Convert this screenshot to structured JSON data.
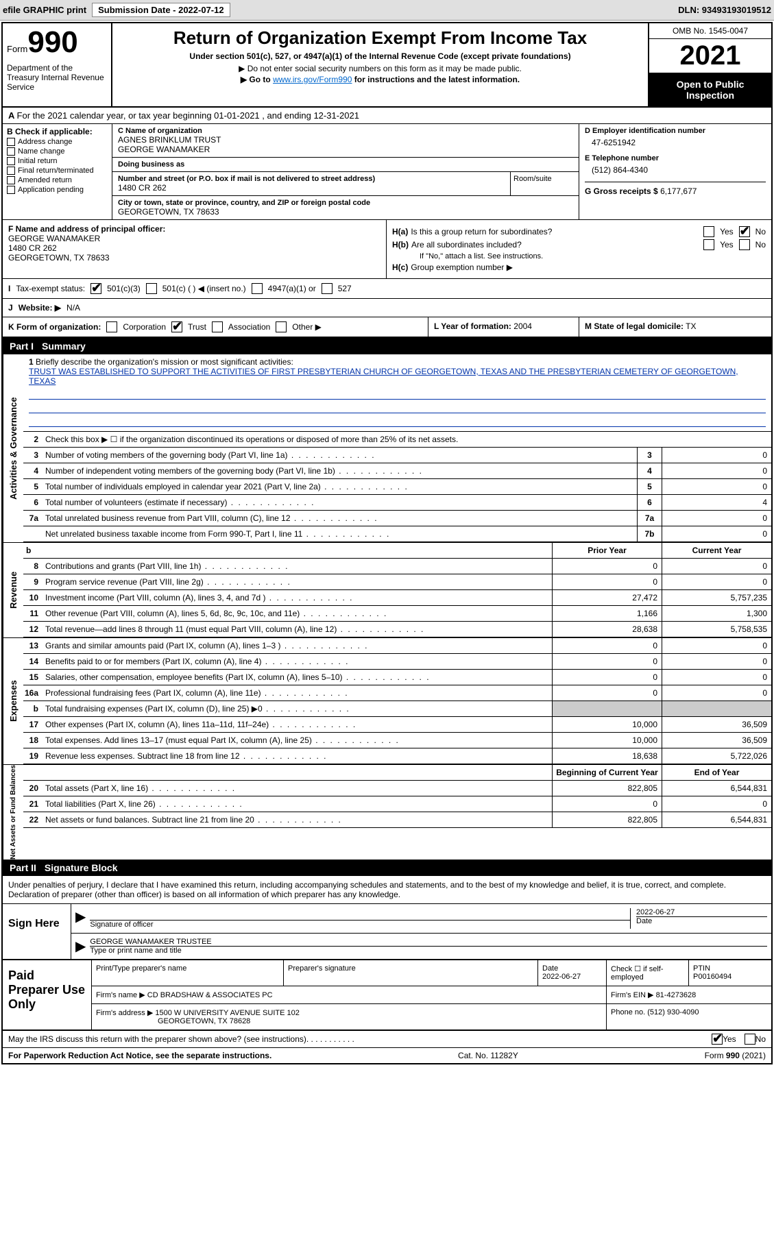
{
  "toolbar": {
    "efile": "efile GRAPHIC print",
    "submission_label": "Submission Date - 2022-07-12",
    "dln_label": "DLN: 93493193019512"
  },
  "header": {
    "form_word": "Form",
    "form_num": "990",
    "dept": "Department of the Treasury Internal Revenue Service",
    "title": "Return of Organization Exempt From Income Tax",
    "sub": "Under section 501(c), 527, or 4947(a)(1) of the Internal Revenue Code (except private foundations)",
    "note1": "▶ Do not enter social security numbers on this form as it may be made public.",
    "note2_pre": "▶ Go to ",
    "note2_link": "www.irs.gov/Form990",
    "note2_post": " for instructions and the latest information.",
    "omb": "OMB No. 1545-0047",
    "year": "2021",
    "open": "Open to Public Inspection"
  },
  "row_a": {
    "text": "For the 2021 calendar year, or tax year beginning 01-01-2021    , and ending 12-31-2021"
  },
  "section_b": {
    "label": "B Check if applicable:",
    "items": [
      "Address change",
      "Name change",
      "Initial return",
      "Final return/terminated",
      "Amended return",
      "Application pending"
    ]
  },
  "section_c": {
    "name_label": "C Name of organization",
    "name1": "AGNES BRINKLUM TRUST",
    "name2": "GEORGE WANAMAKER",
    "dba_label": "Doing business as",
    "addr_label": "Number and street (or P.O. box if mail is not delivered to street address)",
    "addr": "1480 CR 262",
    "room_label": "Room/suite",
    "city_label": "City or town, state or province, country, and ZIP or foreign postal code",
    "city": "GEORGETOWN, TX  78633"
  },
  "section_d": {
    "ein_label": "D Employer identification number",
    "ein": "47-6251942",
    "phone_label": "E Telephone number",
    "phone": "(512) 864-4340",
    "gross_label": "G Gross receipts $",
    "gross": "6,177,677"
  },
  "section_f": {
    "label": "F Name and address of principal officer:",
    "name": "GEORGE WANAMAKER",
    "addr": "1480 CR 262",
    "city": "GEORGETOWN, TX  78633"
  },
  "section_h": {
    "ha_label": "H(a)",
    "ha_text": "Is this a group return for subordinates?",
    "hb_label": "H(b)",
    "hb_text": "Are all subordinates included?",
    "hb_note": "If \"No,\" attach a list. See instructions.",
    "hc_label": "H(c)",
    "hc_text": "Group exemption number ▶",
    "yes": "Yes",
    "no": "No"
  },
  "row_i": {
    "label": "I",
    "text": "Tax-exempt status:",
    "opts": [
      "501(c)(3)",
      "501(c) (  ) ◀ (insert no.)",
      "4947(a)(1) or",
      "527"
    ]
  },
  "row_j": {
    "label": "J",
    "text": "Website: ▶",
    "val": "N/A"
  },
  "row_k": {
    "label": "K Form of organization:",
    "opts": [
      "Corporation",
      "Trust",
      "Association",
      "Other ▶"
    ],
    "l_label": "L Year of formation:",
    "l_val": "2004",
    "m_label": "M State of legal domicile:",
    "m_val": "TX"
  },
  "part1": {
    "label": "Part I",
    "title": "Summary"
  },
  "mission": {
    "num": "1",
    "label": "Briefly describe the organization's mission or most significant activities:",
    "text": "TRUST WAS ESTABLISHED TO SUPPORT THE ACTIVITIES OF FIRST PRESBYTERIAN CHURCH OF GEORGETOWN, TEXAS AND THE PRESBYTERIAN CEMETERY OF GEORGETOWN, TEXAS"
  },
  "lines_gov": [
    {
      "n": "2",
      "d": "Check this box ▶ ☐  if the organization discontinued its operations or disposed of more than 25% of its net assets."
    },
    {
      "n": "3",
      "d": "Number of voting members of the governing body (Part VI, line 1a)",
      "b": "3",
      "v": "0"
    },
    {
      "n": "4",
      "d": "Number of independent voting members of the governing body (Part VI, line 1b)",
      "b": "4",
      "v": "0"
    },
    {
      "n": "5",
      "d": "Total number of individuals employed in calendar year 2021 (Part V, line 2a)",
      "b": "5",
      "v": "0"
    },
    {
      "n": "6",
      "d": "Total number of volunteers (estimate if necessary)",
      "b": "6",
      "v": "4"
    },
    {
      "n": "7a",
      "d": "Total unrelated business revenue from Part VIII, column (C), line 12",
      "b": "7a",
      "v": "0"
    },
    {
      "n": "",
      "d": "Net unrelated business taxable income from Form 990-T, Part I, line 11",
      "b": "7b",
      "v": "0"
    }
  ],
  "col_headers": {
    "py": "Prior Year",
    "cy": "Current Year"
  },
  "lines_rev": [
    {
      "n": "8",
      "d": "Contributions and grants (Part VIII, line 1h)",
      "py": "0",
      "cy": "0"
    },
    {
      "n": "9",
      "d": "Program service revenue (Part VIII, line 2g)",
      "py": "0",
      "cy": "0"
    },
    {
      "n": "10",
      "d": "Investment income (Part VIII, column (A), lines 3, 4, and 7d )",
      "py": "27,472",
      "cy": "5,757,235"
    },
    {
      "n": "11",
      "d": "Other revenue (Part VIII, column (A), lines 5, 6d, 8c, 9c, 10c, and 11e)",
      "py": "1,166",
      "cy": "1,300"
    },
    {
      "n": "12",
      "d": "Total revenue—add lines 8 through 11 (must equal Part VIII, column (A), line 12)",
      "py": "28,638",
      "cy": "5,758,535"
    }
  ],
  "lines_exp": [
    {
      "n": "13",
      "d": "Grants and similar amounts paid (Part IX, column (A), lines 1–3 )",
      "py": "0",
      "cy": "0"
    },
    {
      "n": "14",
      "d": "Benefits paid to or for members (Part IX, column (A), line 4)",
      "py": "0",
      "cy": "0"
    },
    {
      "n": "15",
      "d": "Salaries, other compensation, employee benefits (Part IX, column (A), lines 5–10)",
      "py": "0",
      "cy": "0"
    },
    {
      "n": "16a",
      "d": "Professional fundraising fees (Part IX, column (A), line 11e)",
      "py": "0",
      "cy": "0"
    },
    {
      "n": "b",
      "d": "Total fundraising expenses (Part IX, column (D), line 25) ▶0",
      "py": "",
      "cy": "",
      "gray": true
    },
    {
      "n": "17",
      "d": "Other expenses (Part IX, column (A), lines 11a–11d, 11f–24e)",
      "py": "10,000",
      "cy": "36,509"
    },
    {
      "n": "18",
      "d": "Total expenses. Add lines 13–17 (must equal Part IX, column (A), line 25)",
      "py": "10,000",
      "cy": "36,509"
    },
    {
      "n": "19",
      "d": "Revenue less expenses. Subtract line 18 from line 12",
      "py": "18,638",
      "cy": "5,722,026"
    }
  ],
  "col_headers2": {
    "py": "Beginning of Current Year",
    "cy": "End of Year"
  },
  "lines_net": [
    {
      "n": "20",
      "d": "Total assets (Part X, line 16)",
      "py": "822,805",
      "cy": "6,544,831"
    },
    {
      "n": "21",
      "d": "Total liabilities (Part X, line 26)",
      "py": "0",
      "cy": "0"
    },
    {
      "n": "22",
      "d": "Net assets or fund balances. Subtract line 21 from line 20",
      "py": "822,805",
      "cy": "6,544,831"
    }
  ],
  "side_labels": {
    "gov": "Activities & Governance",
    "rev": "Revenue",
    "exp": "Expenses",
    "net": "Net Assets or Fund Balances"
  },
  "part2": {
    "label": "Part II",
    "title": "Signature Block"
  },
  "sig": {
    "intro": "Under penalties of perjury, I declare that I have examined this return, including accompanying schedules and statements, and to the best of my knowledge and belief, it is true, correct, and complete. Declaration of preparer (other than officer) is based on all information of which preparer has any knowledge.",
    "sign_here": "Sign Here",
    "sig_officer": "Signature of officer",
    "sig_date": "2022-06-27",
    "date_lbl": "Date",
    "name_title": "GEORGE WANAMAKER  TRUSTEE",
    "name_lbl": "Type or print name and title"
  },
  "prep": {
    "label": "Paid Preparer Use Only",
    "print_name_lbl": "Print/Type preparer's name",
    "sig_lbl": "Preparer's signature",
    "date_lbl": "Date",
    "date": "2022-06-27",
    "check_lbl": "Check ☐ if self-employed",
    "ptin_lbl": "PTIN",
    "ptin": "P00160494",
    "firm_name_lbl": "Firm's name   ▶",
    "firm_name": "CD BRADSHAW & ASSOCIATES PC",
    "firm_ein_lbl": "Firm's EIN ▶",
    "firm_ein": "81-4273628",
    "firm_addr_lbl": "Firm's address ▶",
    "firm_addr": "1500 W UNIVERSITY AVENUE SUITE 102",
    "firm_city": "GEORGETOWN, TX  78628",
    "phone_lbl": "Phone no.",
    "phone": "(512) 930-4090"
  },
  "final": {
    "q": "May the IRS discuss this return with the preparer shown above? (see instructions)",
    "yes": "Yes",
    "no": "No"
  },
  "footer": {
    "pra": "For Paperwork Reduction Act Notice, see the separate instructions.",
    "cat": "Cat. No. 11282Y",
    "form": "Form 990 (2021)"
  }
}
